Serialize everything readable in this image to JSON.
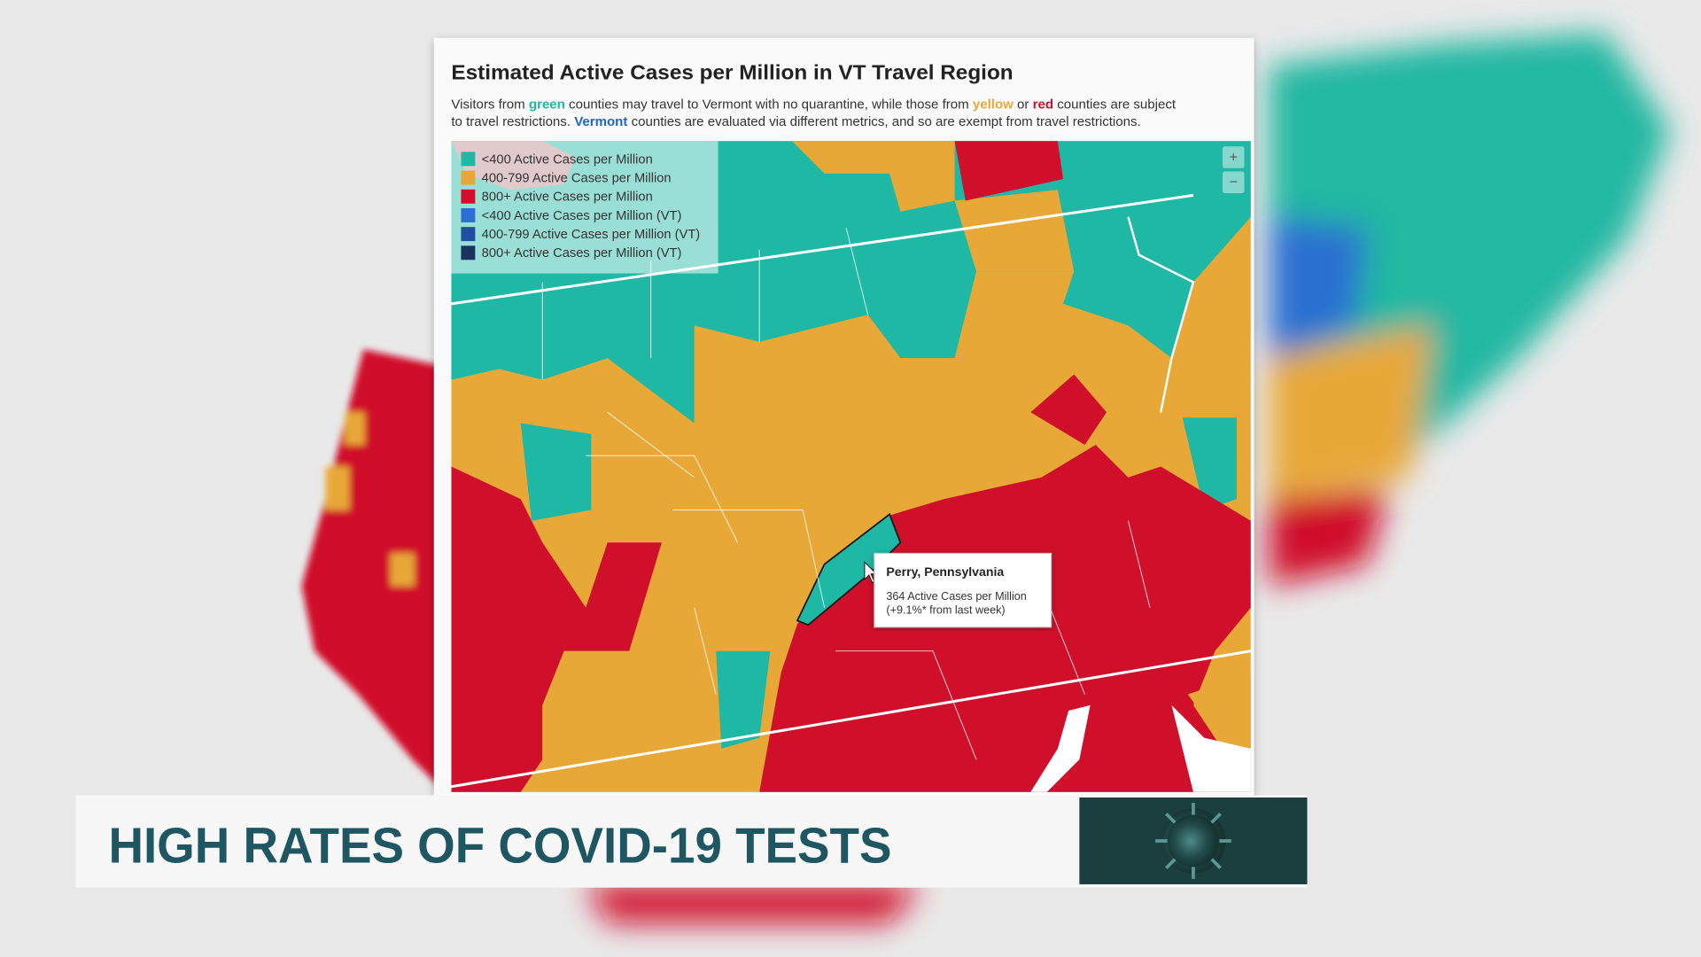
{
  "map": {
    "title": "Estimated Active Cases per Million in VT Travel Region",
    "description": [
      [
        {
          "text": "Visitors from "
        },
        {
          "text": "green",
          "color": "#1fb8a4"
        },
        {
          "text": " counties may travel to Vermont with no quarantine, while those from "
        },
        {
          "text": "yellow",
          "color": "#e8a838"
        },
        {
          "text": " or "
        },
        {
          "text": "red",
          "color": "#d0102a"
        },
        {
          "text": " counties are subject"
        }
      ],
      [
        {
          "text": "to travel restrictions. "
        },
        {
          "text": "Vermont",
          "color": "#1f64c8"
        },
        {
          "text": " counties are evaluated via different metrics, and so are exempt from travel restrictions."
        }
      ]
    ],
    "legend": [
      {
        "label": "<400 Active Cases per Million",
        "color": "#1fb8a4"
      },
      {
        "label": "400-799 Active Cases per Million",
        "color": "#e8a838"
      },
      {
        "label": "800+ Active Cases per Million",
        "color": "#d0102a"
      },
      {
        "label": "<400 Active Cases per Million (VT)",
        "color": "#2a6fd1"
      },
      {
        "label": "400-799 Active Cases per Million (VT)",
        "color": "#1f4fa0"
      },
      {
        "label": "800+ Active Cases per Million (VT)",
        "color": "#1a3260"
      }
    ],
    "zoom": [
      "+",
      "−"
    ],
    "tooltip": {
      "name": "Perry, Pennsylvania",
      "lines": [
        "364 Active Cases per Million",
        "(+9.1%* from last week)"
      ]
    }
  },
  "banner": {
    "headline": "HIGH RATES OF COVID-19 TESTS"
  }
}
